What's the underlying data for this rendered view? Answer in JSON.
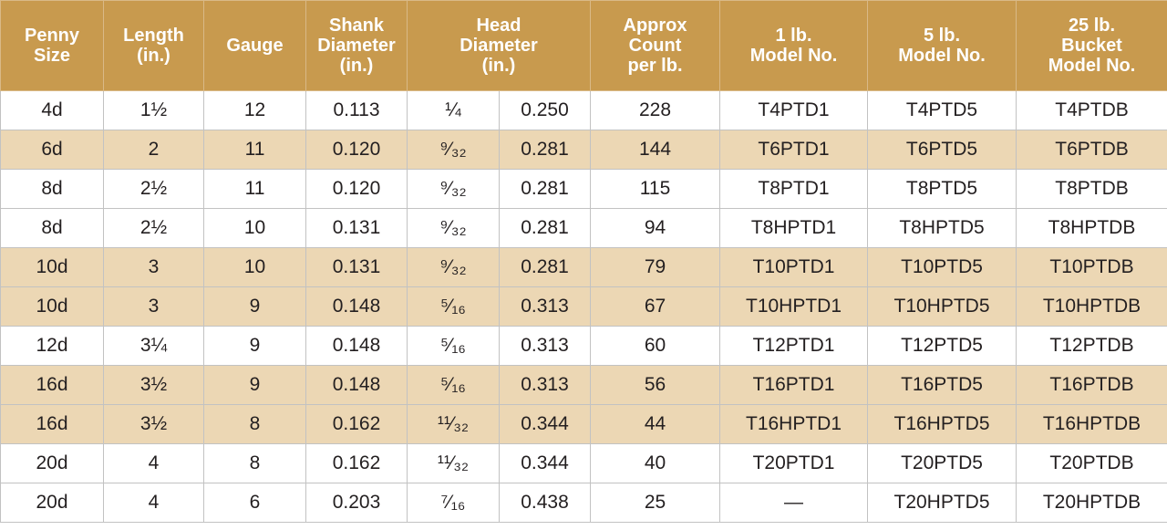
{
  "header": {
    "penny_size": [
      "Penny",
      "Size"
    ],
    "length": [
      "Length",
      "(in.)"
    ],
    "gauge": [
      "Gauge"
    ],
    "shank_diameter": [
      "Shank",
      "Diameter",
      "(in.)"
    ],
    "head_diameter": [
      "Head",
      "Diameter",
      "(in.)"
    ],
    "approx_count": [
      "Approx",
      "Count",
      "per lb."
    ],
    "model_1lb": [
      "1 lb.",
      "Model No."
    ],
    "model_5lb": [
      "5 lb.",
      "Model No."
    ],
    "model_25lb": [
      "25 lb.",
      "Bucket",
      "Model No."
    ]
  },
  "rows": [
    {
      "penny": "4d",
      "length": "1½",
      "gauge": "12",
      "shank": "0.113",
      "head_frac": "¼",
      "head_dec": "0.250",
      "count": "228",
      "m1": "T4PTD1",
      "m5": "T4PTD5",
      "m25": "T4PTDB"
    },
    {
      "penny": "6d",
      "length": "2",
      "gauge": "11",
      "shank": "0.120",
      "head_frac": "⁹⁄₃₂",
      "head_dec": "0.281",
      "count": "144",
      "m1": "T6PTD1",
      "m5": "T6PTD5",
      "m25": "T6PTDB"
    },
    {
      "penny": "8d",
      "length": "2½",
      "gauge": "11",
      "shank": "0.120",
      "head_frac": "⁹⁄₃₂",
      "head_dec": "0.281",
      "count": "115",
      "m1": "T8PTD1",
      "m5": "T8PTD5",
      "m25": "T8PTDB"
    },
    {
      "penny": "8d",
      "length": "2½",
      "gauge": "10",
      "shank": "0.131",
      "head_frac": "⁹⁄₃₂",
      "head_dec": "0.281",
      "count": "94",
      "m1": "T8HPTD1",
      "m5": "T8HPTD5",
      "m25": "T8HPTDB"
    },
    {
      "penny": "10d",
      "length": "3",
      "gauge": "10",
      "shank": "0.131",
      "head_frac": "⁹⁄₃₂",
      "head_dec": "0.281",
      "count": "79",
      "m1": "T10PTD1",
      "m5": "T10PTD5",
      "m25": "T10PTDB"
    },
    {
      "penny": "10d",
      "length": "3",
      "gauge": "9",
      "shank": "0.148",
      "head_frac": "⁵⁄₁₆",
      "head_dec": "0.313",
      "count": "67",
      "m1": "T10HPTD1",
      "m5": "T10HPTD5",
      "m25": "T10HPTDB"
    },
    {
      "penny": "12d",
      "length": "3¼",
      "gauge": "9",
      "shank": "0.148",
      "head_frac": "⁵⁄₁₆",
      "head_dec": "0.313",
      "count": "60",
      "m1": "T12PTD1",
      "m5": "T12PTD5",
      "m25": "T12PTDB"
    },
    {
      "penny": "16d",
      "length": "3½",
      "gauge": "9",
      "shank": "0.148",
      "head_frac": "⁵⁄₁₆",
      "head_dec": "0.313",
      "count": "56",
      "m1": "T16PTD1",
      "m5": "T16PTD5",
      "m25": "T16PTDB"
    },
    {
      "penny": "16d",
      "length": "3½",
      "gauge": "8",
      "shank": "0.162",
      "head_frac": "¹¹⁄₃₂",
      "head_dec": "0.344",
      "count": "44",
      "m1": "T16HPTD1",
      "m5": "T16HPTD5",
      "m25": "T16HPTDB"
    },
    {
      "penny": "20d",
      "length": "4",
      "gauge": "8",
      "shank": "0.162",
      "head_frac": "¹¹⁄₃₂",
      "head_dec": "0.344",
      "count": "40",
      "m1": "T20PTD1",
      "m5": "T20PTD5",
      "m25": "T20PTDB"
    },
    {
      "penny": "20d",
      "length": "4",
      "gauge": "6",
      "shank": "0.203",
      "head_frac": "⁷⁄₁₆",
      "head_dec": "0.438",
      "count": "25",
      "m1": "—",
      "m5": "T20HPTD5",
      "m25": "T20HPTDB"
    }
  ],
  "colors": {
    "header_bg": "#c89a4e",
    "header_text": "#ffffff",
    "shaded_row": "#ecd7b4",
    "plain_row": "#ffffff",
    "grid": "#c2c2c2"
  }
}
